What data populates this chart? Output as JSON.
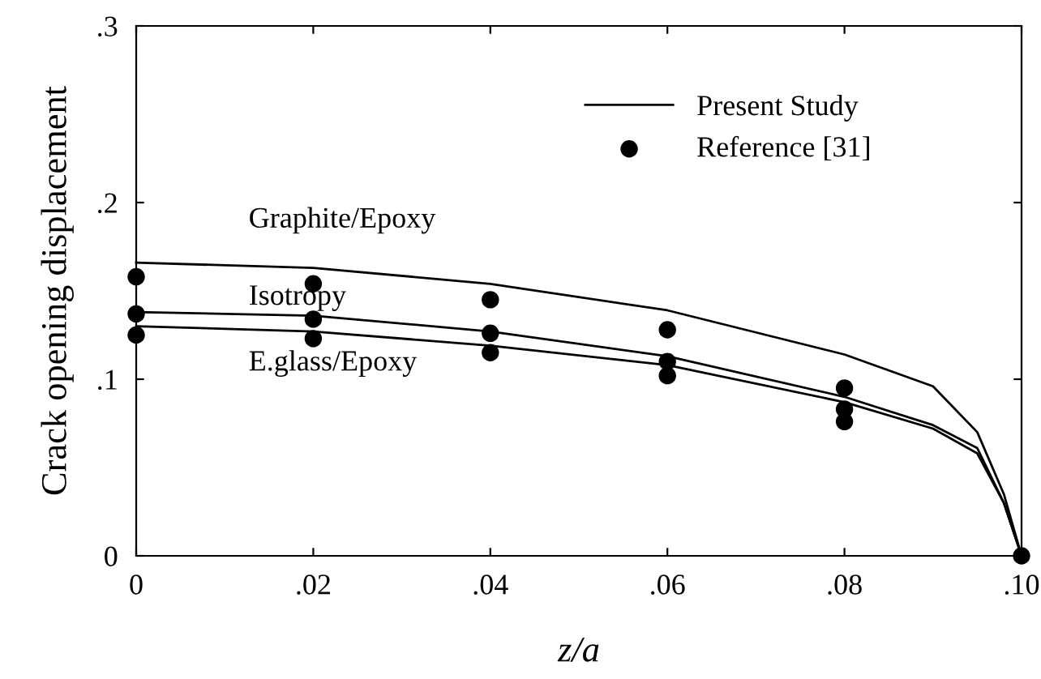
{
  "chart_data": {
    "type": "line",
    "xlabel": "z/a",
    "ylabel": "Crack opening displacement",
    "xlim": [
      0,
      0.1
    ],
    "ylim": [
      0,
      0.3
    ],
    "xticks": [
      0,
      {
        "value": 0.02,
        "label": ".02"
      },
      {
        "value": 0.04,
        "label": ".04"
      },
      {
        "value": 0.06,
        "label": ".06"
      },
      {
        "value": 0.08,
        "label": ".08"
      },
      {
        "value": 0.1,
        "label": ".10"
      }
    ],
    "yticks": [
      0,
      {
        "value": 0.1,
        "label": ".1"
      },
      {
        "value": 0.2,
        "label": ".2"
      },
      {
        "value": 0.3,
        "label": ".3"
      }
    ],
    "grid": false,
    "legend": "top right",
    "series": [
      {
        "name": "Present Study",
        "color": "#000000",
        "x": [
          0,
          0.02,
          0.04,
          0.06,
          0.08,
          0.09,
          0.095,
          0.098,
          0.1
        ],
        "values": [
          0.166,
          0.163,
          0.154,
          0.139,
          0.114,
          0.096,
          0.07,
          0.035,
          0
        ]
      },
      {
        "color": "#000000",
        "x": [
          0,
          0.02,
          0.04,
          0.06,
          0.08,
          0.09,
          0.095,
          0.098,
          0.1
        ],
        "values": [
          0.138,
          0.136,
          0.127,
          0.113,
          0.09,
          0.074,
          0.061,
          0.03,
          0
        ]
      },
      {
        "color": "#000000",
        "x": [
          0,
          0.02,
          0.04,
          0.06,
          0.08,
          0.09,
          0.095,
          0.098,
          0.1
        ],
        "values": [
          0.13,
          0.127,
          0.119,
          0.108,
          0.087,
          0.072,
          0.058,
          0.03,
          0
        ]
      },
      {
        "name": "Reference [31]",
        "type": "scatter",
        "marker": "circle",
        "color": "#000000",
        "x": [
          0,
          0,
          0,
          0.02,
          0.02,
          0.02,
          0.04,
          0.04,
          0.04,
          0.06,
          0.06,
          0.06,
          0.08,
          0.08,
          0.08,
          0.1
        ],
        "values": [
          0.158,
          0.137,
          0.125,
          0.154,
          0.134,
          0.123,
          0.145,
          0.126,
          0.115,
          0.128,
          0.11,
          0.102,
          0.095,
          0.083,
          0.076,
          0
        ]
      }
    ],
    "annotations": [
      "Graphite/Epoxy",
      "Isotropy",
      "E.glass/Epoxy"
    ]
  }
}
